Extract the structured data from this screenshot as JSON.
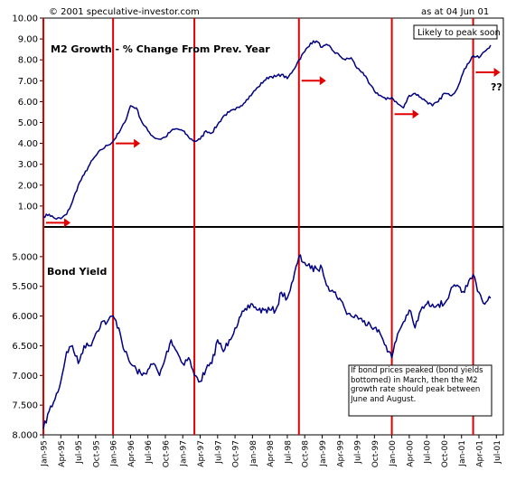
{
  "header": {
    "copyright": "© 2001 speculative-investor.com",
    "as_at": "as at 04 Jun 01"
  },
  "colors": {
    "series": "#000080",
    "marker_lines": "#e00000",
    "arrows": "#e00000",
    "divider": "#000000",
    "background": "#ffffff"
  },
  "chart_data": [
    {
      "type": "line",
      "title": "M2 Growth  -  % Change From Prev. Year",
      "annotation": "Likely to peak soon",
      "ylim": [
        0,
        10
      ],
      "yticks": [
        "10.00",
        "9.00",
        "8.00",
        "7.00",
        "6.00",
        "5.00",
        "4.00",
        "3.00",
        "2.00",
        "1.00"
      ],
      "series": [
        {
          "points": [
            [
              "1995-01",
              0.5
            ],
            [
              "1995-02",
              0.6
            ],
            [
              "1995-03",
              0.4
            ],
            [
              "1995-04",
              0.4
            ],
            [
              "1995-05",
              0.6
            ],
            [
              "1995-06",
              1.2
            ],
            [
              "1995-07",
              2.0
            ],
            [
              "1995-08",
              2.5
            ],
            [
              "1995-09",
              3.0
            ],
            [
              "1995-10",
              3.4
            ],
            [
              "1995-11",
              3.7
            ],
            [
              "1995-12",
              3.9
            ],
            [
              "1996-01",
              4.1
            ],
            [
              "1996-02",
              4.5
            ],
            [
              "1996-03",
              5.0
            ],
            [
              "1996-04",
              5.8
            ],
            [
              "1996-05",
              5.7
            ],
            [
              "1996-06",
              5.0
            ],
            [
              "1996-07",
              4.6
            ],
            [
              "1996-08",
              4.3
            ],
            [
              "1996-09",
              4.2
            ],
            [
              "1996-10",
              4.3
            ],
            [
              "1996-11",
              4.6
            ],
            [
              "1996-12",
              4.7
            ],
            [
              "1997-01",
              4.6
            ],
            [
              "1997-02",
              4.3
            ],
            [
              "1997-03",
              4.1
            ],
            [
              "1997-04",
              4.2
            ],
            [
              "1997-05",
              4.6
            ],
            [
              "1997-06",
              4.5
            ],
            [
              "1997-07",
              4.9
            ],
            [
              "1997-08",
              5.3
            ],
            [
              "1997-09",
              5.5
            ],
            [
              "1997-10",
              5.6
            ],
            [
              "1997-11",
              5.8
            ],
            [
              "1997-12",
              6.1
            ],
            [
              "1998-01",
              6.4
            ],
            [
              "1998-02",
              6.7
            ],
            [
              "1998-03",
              7.0
            ],
            [
              "1998-04",
              7.2
            ],
            [
              "1998-05",
              7.2
            ],
            [
              "1998-06",
              7.3
            ],
            [
              "1998-07",
              7.1
            ],
            [
              "1998-08",
              7.5
            ],
            [
              "1998-09",
              8.0
            ],
            [
              "1998-10",
              8.4
            ],
            [
              "1998-11",
              8.8
            ],
            [
              "1998-12",
              8.9
            ],
            [
              "1999-01",
              8.6
            ],
            [
              "1999-02",
              8.7
            ],
            [
              "1999-03",
              8.4
            ],
            [
              "1999-04",
              8.2
            ],
            [
              "1999-05",
              8.0
            ],
            [
              "1999-06",
              8.1
            ],
            [
              "1999-07",
              7.6
            ],
            [
              "1999-08",
              7.4
            ],
            [
              "1999-09",
              6.9
            ],
            [
              "1999-10",
              6.5
            ],
            [
              "1999-11",
              6.3
            ],
            [
              "1999-12",
              6.1
            ],
            [
              "2000-01",
              6.2
            ],
            [
              "2000-02",
              5.9
            ],
            [
              "2000-03",
              5.7
            ],
            [
              "2000-04",
              6.3
            ],
            [
              "2000-05",
              6.4
            ],
            [
              "2000-06",
              6.2
            ],
            [
              "2000-07",
              6.0
            ],
            [
              "2000-08",
              5.8
            ],
            [
              "2000-09",
              6.0
            ],
            [
              "2000-10",
              6.4
            ],
            [
              "2000-11",
              6.3
            ],
            [
              "2000-12",
              6.5
            ],
            [
              "2001-01",
              7.2
            ],
            [
              "2001-02",
              7.8
            ],
            [
              "2001-03",
              8.2
            ],
            [
              "2001-04",
              8.1
            ],
            [
              "2001-05",
              8.4
            ],
            [
              "2001-06",
              8.7
            ]
          ]
        }
      ]
    },
    {
      "type": "line",
      "title": "Bond Yield",
      "annotation": "If bond prices peaked (bond yields bottomed) in March, then the M2 growth rate should peak between June and August.",
      "ylim": [
        8.0,
        4.5
      ],
      "inverted": true,
      "yticks": [
        "5.000",
        "5.500",
        "6.000",
        "6.500",
        "7.000",
        "7.500",
        "8.000"
      ],
      "series": [
        {
          "points": [
            [
              "1995-01",
              7.9
            ],
            [
              "1995-02",
              7.6
            ],
            [
              "1995-03",
              7.4
            ],
            [
              "1995-04",
              7.1
            ],
            [
              "1995-05",
              6.6
            ],
            [
              "1995-06",
              6.5
            ],
            [
              "1995-07",
              6.8
            ],
            [
              "1995-08",
              6.5
            ],
            [
              "1995-09",
              6.5
            ],
            [
              "1995-10",
              6.3
            ],
            [
              "1995-11",
              6.1
            ],
            [
              "1995-12",
              6.1
            ],
            [
              "1996-01",
              6.0
            ],
            [
              "1996-02",
              6.2
            ],
            [
              "1996-03",
              6.6
            ],
            [
              "1996-04",
              6.8
            ],
            [
              "1996-05",
              6.9
            ],
            [
              "1996-06",
              7.0
            ],
            [
              "1996-07",
              6.9
            ],
            [
              "1996-08",
              6.8
            ],
            [
              "1996-09",
              7.0
            ],
            [
              "1996-10",
              6.7
            ],
            [
              "1996-11",
              6.4
            ],
            [
              "1996-12",
              6.6
            ],
            [
              "1997-01",
              6.8
            ],
            [
              "1997-02",
              6.7
            ],
            [
              "1997-03",
              7.0
            ],
            [
              "1997-04",
              7.1
            ],
            [
              "1997-05",
              6.9
            ],
            [
              "1997-06",
              6.8
            ],
            [
              "1997-07",
              6.4
            ],
            [
              "1997-08",
              6.6
            ],
            [
              "1997-09",
              6.4
            ],
            [
              "1997-10",
              6.2
            ],
            [
              "1997-11",
              6.0
            ],
            [
              "1997-12",
              5.9
            ],
            [
              "1998-01",
              5.8
            ],
            [
              "1998-02",
              5.9
            ],
            [
              "1998-03",
              5.9
            ],
            [
              "1998-04",
              5.9
            ],
            [
              "1998-05",
              5.9
            ],
            [
              "1998-06",
              5.6
            ],
            [
              "1998-07",
              5.7
            ],
            [
              "1998-08",
              5.4
            ],
            [
              "1998-09",
              5.0
            ],
            [
              "1998-10",
              5.1
            ],
            [
              "1998-11",
              5.2
            ],
            [
              "1998-12",
              5.2
            ],
            [
              "1999-01",
              5.2
            ],
            [
              "1999-02",
              5.5
            ],
            [
              "1999-03",
              5.6
            ],
            [
              "1999-04",
              5.7
            ],
            [
              "1999-05",
              5.9
            ],
            [
              "1999-06",
              6.0
            ],
            [
              "1999-07",
              6.0
            ],
            [
              "1999-08",
              6.1
            ],
            [
              "1999-09",
              6.1
            ],
            [
              "1999-10",
              6.2
            ],
            [
              "1999-11",
              6.3
            ],
            [
              "1999-12",
              6.5
            ],
            [
              "2000-01",
              6.7
            ],
            [
              "2000-02",
              6.3
            ],
            [
              "2000-03",
              6.1
            ],
            [
              "2000-04",
              5.9
            ],
            [
              "2000-05",
              6.2
            ],
            [
              "2000-06",
              5.9
            ],
            [
              "2000-07",
              5.8
            ],
            [
              "2000-08",
              5.8
            ],
            [
              "2000-09",
              5.8
            ],
            [
              "2000-10",
              5.8
            ],
            [
              "2000-11",
              5.6
            ],
            [
              "2000-12",
              5.5
            ],
            [
              "2001-01",
              5.6
            ],
            [
              "2001-02",
              5.5
            ],
            [
              "2001-03",
              5.3
            ],
            [
              "2001-04",
              5.6
            ],
            [
              "2001-05",
              5.8
            ],
            [
              "2001-06",
              5.7
            ]
          ]
        }
      ]
    }
  ],
  "x_axis": {
    "ticks": [
      "Jan-95",
      "Apr-95",
      "Jul-95",
      "Oct-95",
      "Jan-96",
      "Apr-96",
      "Jul-96",
      "Oct-96",
      "Jan-97",
      "Apr-97",
      "Jul-97",
      "Oct-97",
      "Jan-98",
      "Apr-98",
      "Jul-98",
      "Oct-98",
      "Jan-99",
      "Apr-99",
      "Jul-99",
      "Oct-99",
      "Jan-00",
      "Apr-00",
      "Jul-00",
      "Oct-00",
      "Jan-01",
      "Apr-01",
      "Jul-01"
    ]
  },
  "markers": {
    "vertical_lines": [
      "1995-01",
      "1996-01",
      "1997-03",
      "1998-09",
      "2000-01",
      "2001-03"
    ],
    "arrows": [
      {
        "date": "1995-01",
        "value": 0.2,
        "panel": 0,
        "label": ""
      },
      {
        "date": "1996-01",
        "value": 4.0,
        "panel": 0,
        "label": ""
      },
      {
        "date": "1998-09",
        "value": 7.0,
        "panel": 0,
        "label": ""
      },
      {
        "date": "2000-01",
        "value": 5.4,
        "panel": 0,
        "label": ""
      },
      {
        "date": "2001-03",
        "value": 7.4,
        "panel": 0,
        "label": "??"
      }
    ]
  }
}
